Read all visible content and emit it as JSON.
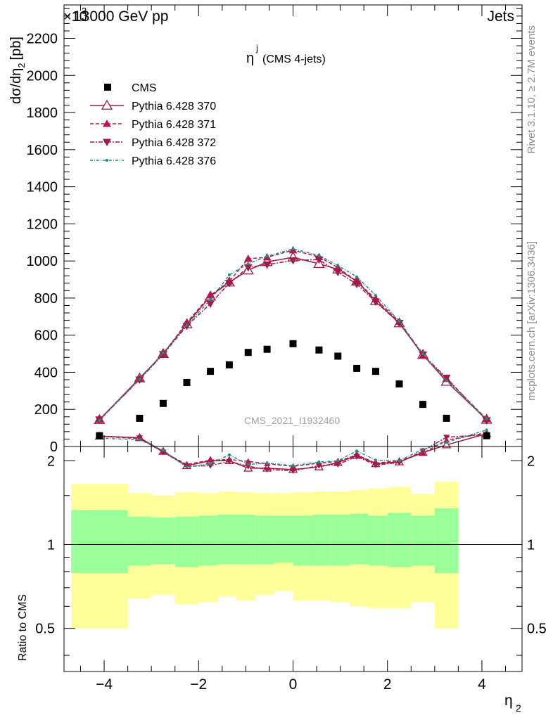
{
  "header": {
    "left": "13000 GeV pp",
    "right": "Jets",
    "exponent_prefix": "×10",
    "exponent_power": "3"
  },
  "side": {
    "rivet": "Rivet 3.1.10, ≥ 2.7M events",
    "mcplots": "mcplots.cern.ch [arXiv:1306.3436]"
  },
  "chart_data": {
    "type": "scatter",
    "title_main": "η",
    "title_sup": "j",
    "title_sub": "(CMS 4-jets)",
    "watermark": "CMS_2021_I1932460",
    "xlabel_main": "η",
    "xlabel_sub": "2",
    "ylabel_top": "dσ/dη",
    "ylabel_top_sub": "2",
    "ylabel_top_unit": "[pb]",
    "ylabel_bottom": "Ratio to CMS",
    "xlim": [
      -4.85,
      4.85
    ],
    "ylim_top": [
      0,
      2380
    ],
    "ylim_bottom": [
      0.35,
      2.25
    ],
    "y_scale_bottom": "log",
    "x_ticks": [
      -4,
      -2,
      0,
      2,
      4
    ],
    "y_ticks_top": [
      0,
      200,
      400,
      600,
      800,
      1000,
      1200,
      1400,
      1600,
      1800,
      2000,
      2200
    ],
    "y_ticks_bottom": [
      0.5,
      1,
      2
    ],
    "legend_position": "top-left",
    "bins": [
      -4.7,
      -3.5,
      -3.0,
      -2.5,
      -2.0,
      -1.6,
      -1.2,
      -0.8,
      -0.4,
      0.0,
      0.4,
      0.8,
      1.2,
      1.6,
      2.0,
      2.5,
      3.0,
      3.5,
      4.7
    ],
    "x": [
      -4.1,
      -3.25,
      -2.75,
      -2.25,
      -1.8,
      -1.4,
      -1.0,
      -0.6,
      -0.2,
      0.2,
      0.6,
      1.0,
      1.4,
      1.8,
      2.25,
      2.75,
      3.25,
      4.1
    ],
    "cms": {
      "name": "CMS",
      "x": [
        -4.1,
        -3.25,
        -2.75,
        -2.25,
        -1.75,
        -1.35,
        -0.95,
        -0.55,
        0.0,
        0.55,
        0.95,
        1.35,
        1.75,
        2.25,
        2.75,
        3.25,
        4.1
      ],
      "values": [
        58,
        152,
        232,
        345,
        405,
        440,
        507,
        524,
        554,
        520,
        487,
        421,
        405,
        337,
        227,
        152,
        58
      ],
      "color": "#000000"
    },
    "series": [
      {
        "name": "Pythia 6.428 370",
        "x": [
          -4.1,
          -3.25,
          -2.75,
          -2.25,
          -1.75,
          -1.35,
          -0.95,
          -0.55,
          0.0,
          0.55,
          0.95,
          1.35,
          1.75,
          2.25,
          2.75,
          3.25,
          4.1
        ],
        "values": [
          144,
          368,
          500,
          660,
          810,
          885,
          950,
          995,
          1020,
          985,
          955,
          890,
          785,
          665,
          495,
          350,
          145
        ],
        "ratio": [
          2.45,
          2.42,
          2.16,
          1.92,
          2.0,
          2.0,
          1.88,
          1.88,
          1.86,
          1.9,
          1.97,
          2.09,
          1.95,
          1.98,
          2.14,
          2.28,
          2.5
        ],
        "color": "#9a1b3a",
        "dash": "",
        "marker": "triangle-up-open"
      },
      {
        "name": "Pythia 6.428 371",
        "x": [
          -4.1,
          -3.25,
          -2.75,
          -2.25,
          -1.75,
          -1.35,
          -0.95,
          -0.55,
          0.0,
          0.55,
          0.95,
          1.35,
          1.75,
          2.25,
          2.75,
          3.25,
          4.1
        ],
        "values": [
          145,
          365,
          500,
          668,
          815,
          890,
          1012,
          1020,
          1058,
          1022,
          965,
          890,
          795,
          672,
          490,
          365,
          148
        ],
        "ratio": [
          2.45,
          2.4,
          2.15,
          1.94,
          2.01,
          2.02,
          1.99,
          1.95,
          1.91,
          1.96,
          1.99,
          2.1,
          1.96,
          2.0,
          2.13,
          2.37,
          2.52
        ],
        "color": "#b5145a",
        "dash": "5,3",
        "marker": "triangle-up-filled"
      },
      {
        "name": "Pythia 6.428 372",
        "x": [
          -4.1,
          -3.25,
          -2.75,
          -2.25,
          -1.75,
          -1.35,
          -0.95,
          -0.55,
          0.0,
          0.55,
          0.95,
          1.35,
          1.75,
          2.25,
          2.75,
          3.25,
          4.1
        ],
        "values": [
          145,
          360,
          497,
          650,
          770,
          880,
          965,
          980,
          1003,
          1007,
          940,
          875,
          780,
          665,
          495,
          370,
          140
        ],
        "ratio": [
          2.45,
          2.42,
          2.15,
          1.91,
          1.92,
          1.99,
          1.91,
          1.86,
          1.84,
          1.92,
          1.94,
          2.07,
          1.93,
          1.97,
          2.17,
          2.43,
          2.48
        ],
        "color": "#a01a4c",
        "dash": "6,2,2,2",
        "marker": "triangle-down-filled"
      },
      {
        "name": "Pythia 6.428 376",
        "x": [
          -4.1,
          -3.25,
          -2.75,
          -2.25,
          -1.75,
          -1.35,
          -0.95,
          -0.55,
          0.0,
          0.55,
          0.95,
          1.35,
          1.75,
          2.25,
          2.75,
          3.25,
          4.1
        ],
        "values": [
          140,
          362,
          505,
          655,
          790,
          925,
          985,
          1025,
          1065,
          1030,
          975,
          915,
          815,
          675,
          500,
          355,
          150
        ],
        "ratio": [
          2.41,
          2.38,
          2.18,
          1.9,
          1.95,
          2.1,
          1.94,
          1.96,
          1.92,
          1.98,
          2.0,
          2.17,
          2.01,
          2.0,
          2.2,
          2.33,
          2.58
        ],
        "color": "#1e8f7d",
        "dash": "4,2,1,2",
        "marker": "dot"
      }
    ],
    "band_inner": {
      "lo": [
        0.79,
        0.84,
        0.85,
        0.83,
        0.84,
        0.85,
        0.85,
        0.85,
        0.86,
        0.84,
        0.84,
        0.84,
        0.85,
        0.84,
        0.83,
        0.84,
        0.79
      ],
      "hi": [
        1.33,
        1.26,
        1.25,
        1.26,
        1.27,
        1.28,
        1.28,
        1.27,
        1.27,
        1.27,
        1.28,
        1.28,
        1.29,
        1.27,
        1.3,
        1.27,
        1.35
      ],
      "color": "#99ff99"
    },
    "band_outer": {
      "lo": [
        0.5,
        0.64,
        0.66,
        0.61,
        0.62,
        0.65,
        0.63,
        0.66,
        0.68,
        0.63,
        0.63,
        0.62,
        0.6,
        0.59,
        0.59,
        0.62,
        0.5
      ],
      "hi": [
        1.65,
        1.53,
        1.5,
        1.54,
        1.53,
        1.55,
        1.54,
        1.53,
        1.53,
        1.54,
        1.55,
        1.55,
        1.57,
        1.59,
        1.61,
        1.52,
        1.68
      ],
      "color": "#ffff99"
    }
  }
}
